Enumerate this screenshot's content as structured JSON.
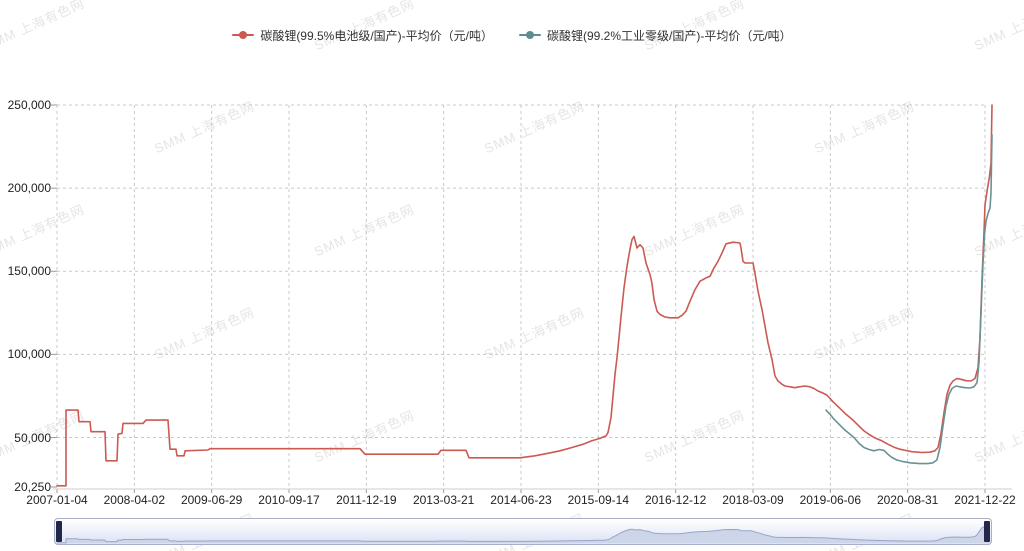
{
  "watermark": {
    "text": "SMM 上海有色网"
  },
  "legend": {
    "series1": {
      "label": "碳酸锂(99.5%电池级/国产)-平均价（元/吨）",
      "color": "#cb5a52"
    },
    "series2": {
      "label": "碳酸锂(99.2%工业零级/国产)-平均价（元/吨）",
      "color": "#5f8c8e"
    }
  },
  "navigator": {
    "handle_color": "#23284a",
    "area_fill": "#cdd5e9",
    "area_line": "#9aa5c7"
  },
  "chart_data": {
    "type": "line",
    "title": "",
    "xlabel": "",
    "ylabel": "",
    "ylim": [
      20250,
      250000
    ],
    "grid": "dashed",
    "legend_position": "top-center",
    "x_note": "point x values are fractions of the x-axis span from 2007-01-04 (0) to 2021-12-22 (1); values are prices in CNY/tonne",
    "x_ticks": [
      "2007-01-04",
      "2008-04-02",
      "2009-06-29",
      "2010-09-17",
      "2011-12-19",
      "2013-03-21",
      "2014-06-23",
      "2015-09-14",
      "2016-12-12",
      "2018-03-09",
      "2019-06-06",
      "2020-08-31",
      "2021-12-22"
    ],
    "y_ticks": [
      {
        "label": "250,000",
        "v": 250000
      },
      {
        "label": "200,000",
        "v": 200000
      },
      {
        "label": "150,000",
        "v": 150000
      },
      {
        "label": "100,000",
        "v": 100000
      },
      {
        "label": "50,000",
        "v": 50000
      },
      {
        "label": "20,250",
        "v": 20250
      }
    ],
    "series": [
      {
        "name": "碳酸锂(99.5%电池级/国产)-平均价（元/吨）",
        "color": "#cb5a52",
        "points": [
          [
            0.0,
            21000
          ],
          [
            0.0097,
            21000
          ],
          [
            0.0097,
            66500
          ],
          [
            0.0226,
            66500
          ],
          [
            0.0237,
            59500
          ],
          [
            0.0356,
            59500
          ],
          [
            0.0366,
            53500
          ],
          [
            0.0517,
            53500
          ],
          [
            0.0528,
            36000
          ],
          [
            0.0647,
            36000
          ],
          [
            0.0657,
            52000
          ],
          [
            0.07,
            52500
          ],
          [
            0.0711,
            58500
          ],
          [
            0.0927,
            58500
          ],
          [
            0.0959,
            60500
          ],
          [
            0.1196,
            60500
          ],
          [
            0.1218,
            43000
          ],
          [
            0.1282,
            43000
          ],
          [
            0.1293,
            39000
          ],
          [
            0.1369,
            39000
          ],
          [
            0.138,
            42000
          ],
          [
            0.1627,
            42500
          ],
          [
            0.1649,
            43300
          ],
          [
            0.3265,
            43300
          ],
          [
            0.3319,
            40000
          ],
          [
            0.4106,
            40000
          ],
          [
            0.4138,
            42300
          ],
          [
            0.4407,
            42300
          ],
          [
            0.444,
            37800
          ],
          [
            0.499,
            37800
          ],
          [
            0.515,
            39000
          ],
          [
            0.529,
            40500
          ],
          [
            0.542,
            42000
          ],
          [
            0.555,
            44000
          ],
          [
            0.567,
            46000
          ],
          [
            0.576,
            48000
          ],
          [
            0.585,
            49500
          ],
          [
            0.5916,
            51000
          ],
          [
            0.5938,
            53000
          ],
          [
            0.597,
            62000
          ],
          [
            0.5991,
            75000
          ],
          [
            0.6013,
            88000
          ],
          [
            0.6034,
            98000
          ],
          [
            0.6056,
            110000
          ],
          [
            0.6077,
            122000
          ],
          [
            0.611,
            140000
          ],
          [
            0.6142,
            153000
          ],
          [
            0.6174,
            163000
          ],
          [
            0.6196,
            169000
          ],
          [
            0.6218,
            171000
          ],
          [
            0.625,
            164000
          ],
          [
            0.6282,
            166000
          ],
          [
            0.6315,
            164000
          ],
          [
            0.6347,
            155000
          ],
          [
            0.639,
            148000
          ],
          [
            0.6411,
            143000
          ],
          [
            0.6433,
            133000
          ],
          [
            0.6465,
            126000
          ],
          [
            0.6498,
            124000
          ],
          [
            0.6552,
            122500
          ],
          [
            0.6606,
            122000
          ],
          [
            0.6692,
            122000
          ],
          [
            0.6735,
            123500
          ],
          [
            0.6778,
            126000
          ],
          [
            0.6821,
            132000
          ],
          [
            0.6875,
            139000
          ],
          [
            0.6929,
            144000
          ],
          [
            0.6993,
            146000
          ],
          [
            0.7037,
            147000
          ],
          [
            0.708,
            152000
          ],
          [
            0.7123,
            156000
          ],
          [
            0.7166,
            161000
          ],
          [
            0.7209,
            166500
          ],
          [
            0.7284,
            167500
          ],
          [
            0.736,
            167000
          ],
          [
            0.7371,
            164000
          ],
          [
            0.7392,
            156000
          ],
          [
            0.7414,
            155000
          ],
          [
            0.75,
            155000
          ],
          [
            0.7521,
            149000
          ],
          [
            0.7554,
            138000
          ],
          [
            0.7597,
            127000
          ],
          [
            0.7629,
            117000
          ],
          [
            0.7662,
            107000
          ],
          [
            0.7705,
            97000
          ],
          [
            0.7737,
            87000
          ],
          [
            0.7769,
            84000
          ],
          [
            0.7812,
            82000
          ],
          [
            0.7845,
            81000
          ],
          [
            0.79,
            80500
          ],
          [
            0.795,
            80000
          ],
          [
            0.8,
            80500
          ],
          [
            0.806,
            81000
          ],
          [
            0.8114,
            80500
          ],
          [
            0.8157,
            79500
          ],
          [
            0.82,
            78000
          ],
          [
            0.8244,
            77000
          ],
          [
            0.8297,
            75500
          ],
          [
            0.8362,
            71500
          ],
          [
            0.8438,
            67500
          ],
          [
            0.8502,
            64000
          ],
          [
            0.8567,
            61000
          ],
          [
            0.8631,
            57500
          ],
          [
            0.8696,
            54000
          ],
          [
            0.876,
            51500
          ],
          [
            0.8825,
            49500
          ],
          [
            0.889,
            48000
          ],
          [
            0.8954,
            46000
          ],
          [
            0.9019,
            44200
          ],
          [
            0.9083,
            43000
          ],
          [
            0.9148,
            42200
          ],
          [
            0.9213,
            41500
          ],
          [
            0.932,
            41000
          ],
          [
            0.9407,
            41200
          ],
          [
            0.946,
            42000
          ],
          [
            0.9493,
            44000
          ],
          [
            0.9525,
            52000
          ],
          [
            0.9558,
            65000
          ],
          [
            0.959,
            76000
          ],
          [
            0.9623,
            81500
          ],
          [
            0.9655,
            84000
          ],
          [
            0.9698,
            85500
          ],
          [
            0.9741,
            85000
          ],
          [
            0.9795,
            84200
          ],
          [
            0.9849,
            84000
          ],
          [
            0.9892,
            85500
          ],
          [
            0.9925,
            92000
          ],
          [
            0.9946,
            110000
          ],
          [
            0.9968,
            145000
          ],
          [
            0.999,
            175000
          ],
          [
            1.0,
            190000
          ],
          [
            1.0011,
            194000
          ],
          [
            1.0022,
            198000
          ],
          [
            1.0033,
            202000
          ],
          [
            1.0049,
            207000
          ],
          [
            1.0065,
            215000
          ],
          [
            1.0075,
            250000
          ]
        ]
      },
      {
        "name": "碳酸锂(99.2%工业零级/国产)-平均价（元/吨）",
        "color": "#6b9193",
        "points": [
          [
            0.8287,
            66500
          ],
          [
            0.833,
            64000
          ],
          [
            0.8373,
            61000
          ],
          [
            0.8427,
            58000
          ],
          [
            0.8481,
            55000
          ],
          [
            0.8534,
            52500
          ],
          [
            0.8588,
            50000
          ],
          [
            0.8642,
            46500
          ],
          [
            0.8696,
            44000
          ],
          [
            0.875,
            42800
          ],
          [
            0.8804,
            42000
          ],
          [
            0.8858,
            42800
          ],
          [
            0.8911,
            42300
          ],
          [
            0.8954,
            40000
          ],
          [
            0.8997,
            38000
          ],
          [
            0.9051,
            36500
          ],
          [
            0.9116,
            35500
          ],
          [
            0.9191,
            34800
          ],
          [
            0.9299,
            34300
          ],
          [
            0.9385,
            34300
          ],
          [
            0.9439,
            34800
          ],
          [
            0.9482,
            36500
          ],
          [
            0.9515,
            44000
          ],
          [
            0.9547,
            57000
          ],
          [
            0.958,
            69000
          ],
          [
            0.9612,
            76000
          ],
          [
            0.9644,
            79500
          ],
          [
            0.9687,
            81000
          ],
          [
            0.973,
            80500
          ],
          [
            0.9784,
            80000
          ],
          [
            0.9838,
            79800
          ],
          [
            0.9881,
            80500
          ],
          [
            0.9914,
            83000
          ],
          [
            0.9935,
            95000
          ],
          [
            0.9957,
            125000
          ],
          [
            0.9978,
            155000
          ],
          [
            0.9995,
            172000
          ],
          [
            1.0011,
            180000
          ],
          [
            1.0033,
            185000
          ],
          [
            1.0054,
            188000
          ],
          [
            1.0065,
            197000
          ],
          [
            1.0075,
            232000
          ]
        ]
      }
    ]
  }
}
